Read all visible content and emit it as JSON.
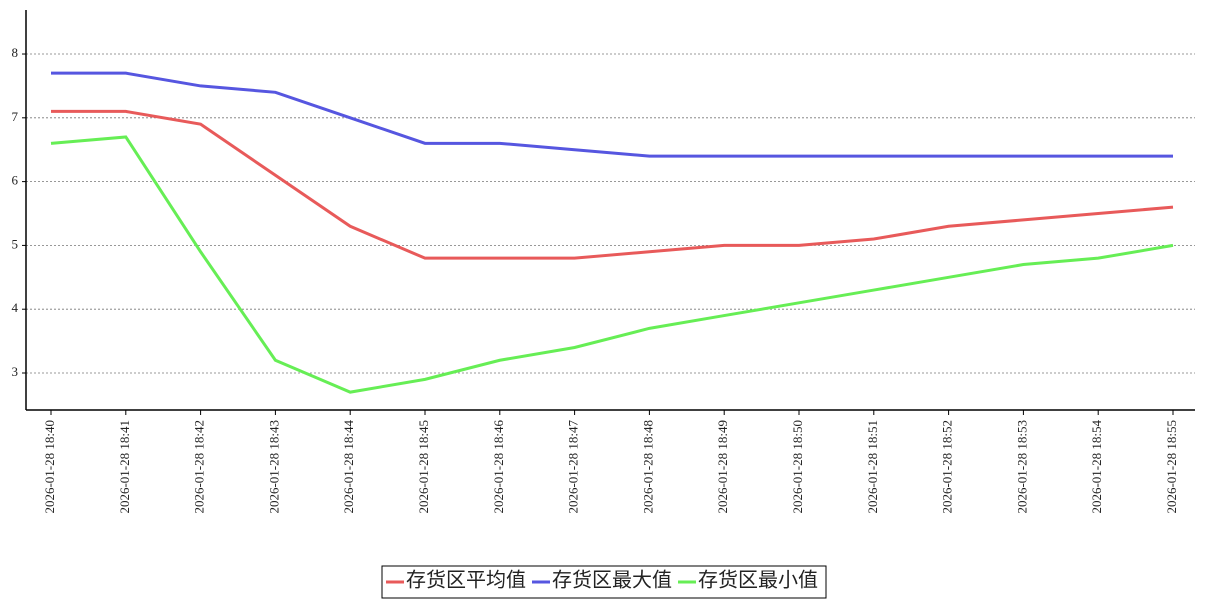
{
  "chart_data": {
    "type": "line",
    "categories": [
      "2026-01-28 18:40",
      "2026-01-28 18:41",
      "2026-01-28 18:42",
      "2026-01-28 18:43",
      "2026-01-28 18:44",
      "2026-01-28 18:45",
      "2026-01-28 18:46",
      "2026-01-28 18:47",
      "2026-01-28 18:48",
      "2026-01-28 18:49",
      "2026-01-28 18:50",
      "2026-01-28 18:51",
      "2026-01-28 18:52",
      "2026-01-28 18:53",
      "2026-01-28 18:54",
      "2026-01-28 18:55"
    ],
    "series": [
      {
        "name": "存货区平均值",
        "color": "#e85a5a",
        "values": [
          7.1,
          7.1,
          6.9,
          6.1,
          5.3,
          4.8,
          4.8,
          4.8,
          4.9,
          5.0,
          5.0,
          5.1,
          5.3,
          5.4,
          5.5,
          5.6
        ]
      },
      {
        "name": "存货区最大值",
        "color": "#5656e0",
        "values": [
          7.7,
          7.7,
          7.5,
          7.4,
          7.0,
          6.6,
          6.6,
          6.5,
          6.4,
          6.4,
          6.4,
          6.4,
          6.4,
          6.4,
          6.4,
          6.4
        ]
      },
      {
        "name": "存货区最小值",
        "color": "#66ee55",
        "values": [
          6.6,
          6.7,
          4.9,
          3.2,
          2.7,
          2.9,
          3.2,
          3.4,
          3.7,
          3.9,
          4.1,
          4.3,
          4.5,
          4.7,
          4.8,
          5.0
        ]
      }
    ],
    "ylim": [
      2.42,
      8.69
    ],
    "yticks": [
      3,
      4,
      5,
      6,
      7,
      8
    ],
    "grid": true,
    "legend": "bottom"
  }
}
